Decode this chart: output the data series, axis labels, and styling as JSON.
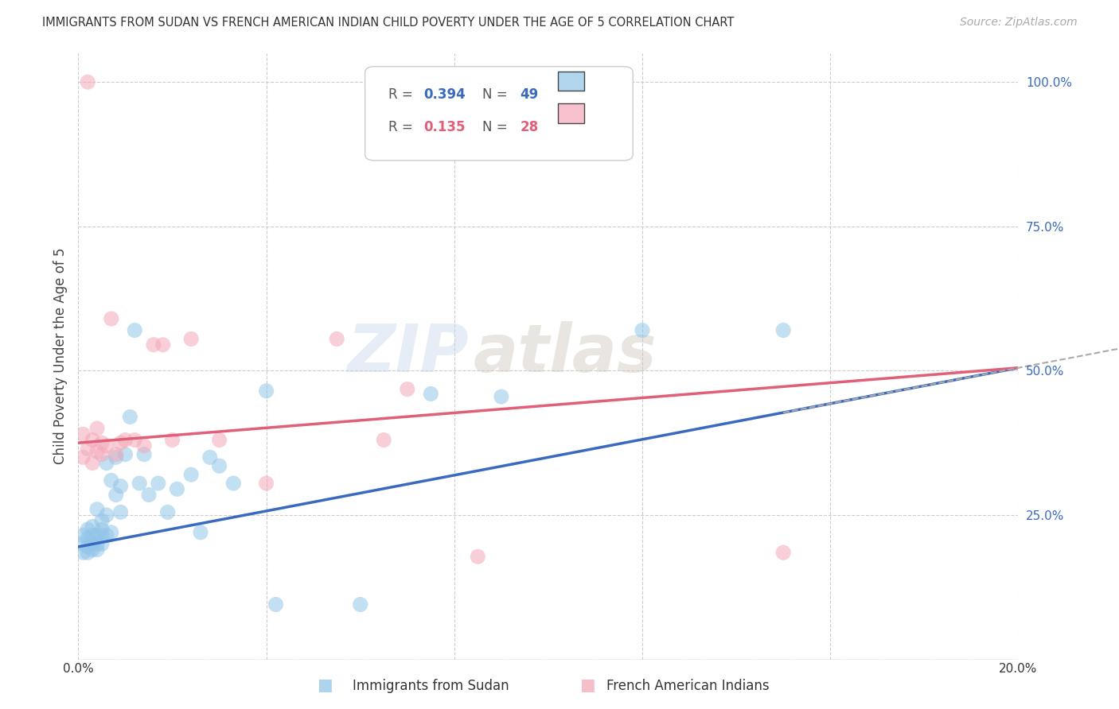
{
  "title": "IMMIGRANTS FROM SUDAN VS FRENCH AMERICAN INDIAN CHILD POVERTY UNDER THE AGE OF 5 CORRELATION CHART",
  "source": "Source: ZipAtlas.com",
  "ylabel": "Child Poverty Under the Age of 5",
  "x_min": 0.0,
  "x_max": 0.2,
  "y_min": 0.0,
  "y_max": 1.05,
  "R_blue": 0.394,
  "N_blue": 49,
  "R_pink": 0.135,
  "N_pink": 28,
  "blue_color": "#92c5e8",
  "pink_color": "#f4a8b8",
  "blue_line_color": "#3a6abf",
  "pink_line_color": "#e0607a",
  "legend_label_blue": "Immigrants from Sudan",
  "legend_label_pink": "French American Indians",
  "watermark_zip": "ZIP",
  "watermark_atlas": "atlas",
  "blue_intercept": 0.195,
  "blue_slope": 1.55,
  "pink_intercept": 0.375,
  "pink_slope": 0.65,
  "blue_points_x": [
    0.001,
    0.001,
    0.001,
    0.002,
    0.002,
    0.002,
    0.002,
    0.003,
    0.003,
    0.003,
    0.003,
    0.004,
    0.004,
    0.004,
    0.004,
    0.005,
    0.005,
    0.005,
    0.005,
    0.006,
    0.006,
    0.006,
    0.007,
    0.007,
    0.008,
    0.008,
    0.009,
    0.009,
    0.01,
    0.011,
    0.012,
    0.013,
    0.014,
    0.015,
    0.017,
    0.019,
    0.021,
    0.024,
    0.026,
    0.028,
    0.03,
    0.033,
    0.04,
    0.042,
    0.06,
    0.075,
    0.09,
    0.12,
    0.15
  ],
  "blue_points_y": [
    0.185,
    0.2,
    0.215,
    0.185,
    0.195,
    0.21,
    0.225,
    0.19,
    0.2,
    0.215,
    0.23,
    0.19,
    0.2,
    0.215,
    0.26,
    0.2,
    0.215,
    0.225,
    0.24,
    0.215,
    0.25,
    0.34,
    0.22,
    0.31,
    0.285,
    0.35,
    0.255,
    0.3,
    0.355,
    0.42,
    0.57,
    0.305,
    0.355,
    0.285,
    0.305,
    0.255,
    0.295,
    0.32,
    0.22,
    0.35,
    0.335,
    0.305,
    0.465,
    0.095,
    0.095,
    0.46,
    0.455,
    0.57,
    0.57
  ],
  "pink_points_x": [
    0.001,
    0.001,
    0.002,
    0.003,
    0.003,
    0.004,
    0.004,
    0.005,
    0.005,
    0.006,
    0.007,
    0.008,
    0.009,
    0.01,
    0.012,
    0.014,
    0.016,
    0.018,
    0.02,
    0.024,
    0.03,
    0.04,
    0.055,
    0.065,
    0.07,
    0.085,
    0.15,
    0.002
  ],
  "pink_points_y": [
    0.35,
    0.39,
    0.365,
    0.34,
    0.38,
    0.36,
    0.4,
    0.355,
    0.375,
    0.37,
    0.59,
    0.355,
    0.375,
    0.38,
    0.38,
    0.37,
    0.545,
    0.545,
    0.38,
    0.555,
    0.38,
    0.305,
    0.555,
    0.38,
    0.468,
    0.178,
    0.185,
    1.0
  ]
}
